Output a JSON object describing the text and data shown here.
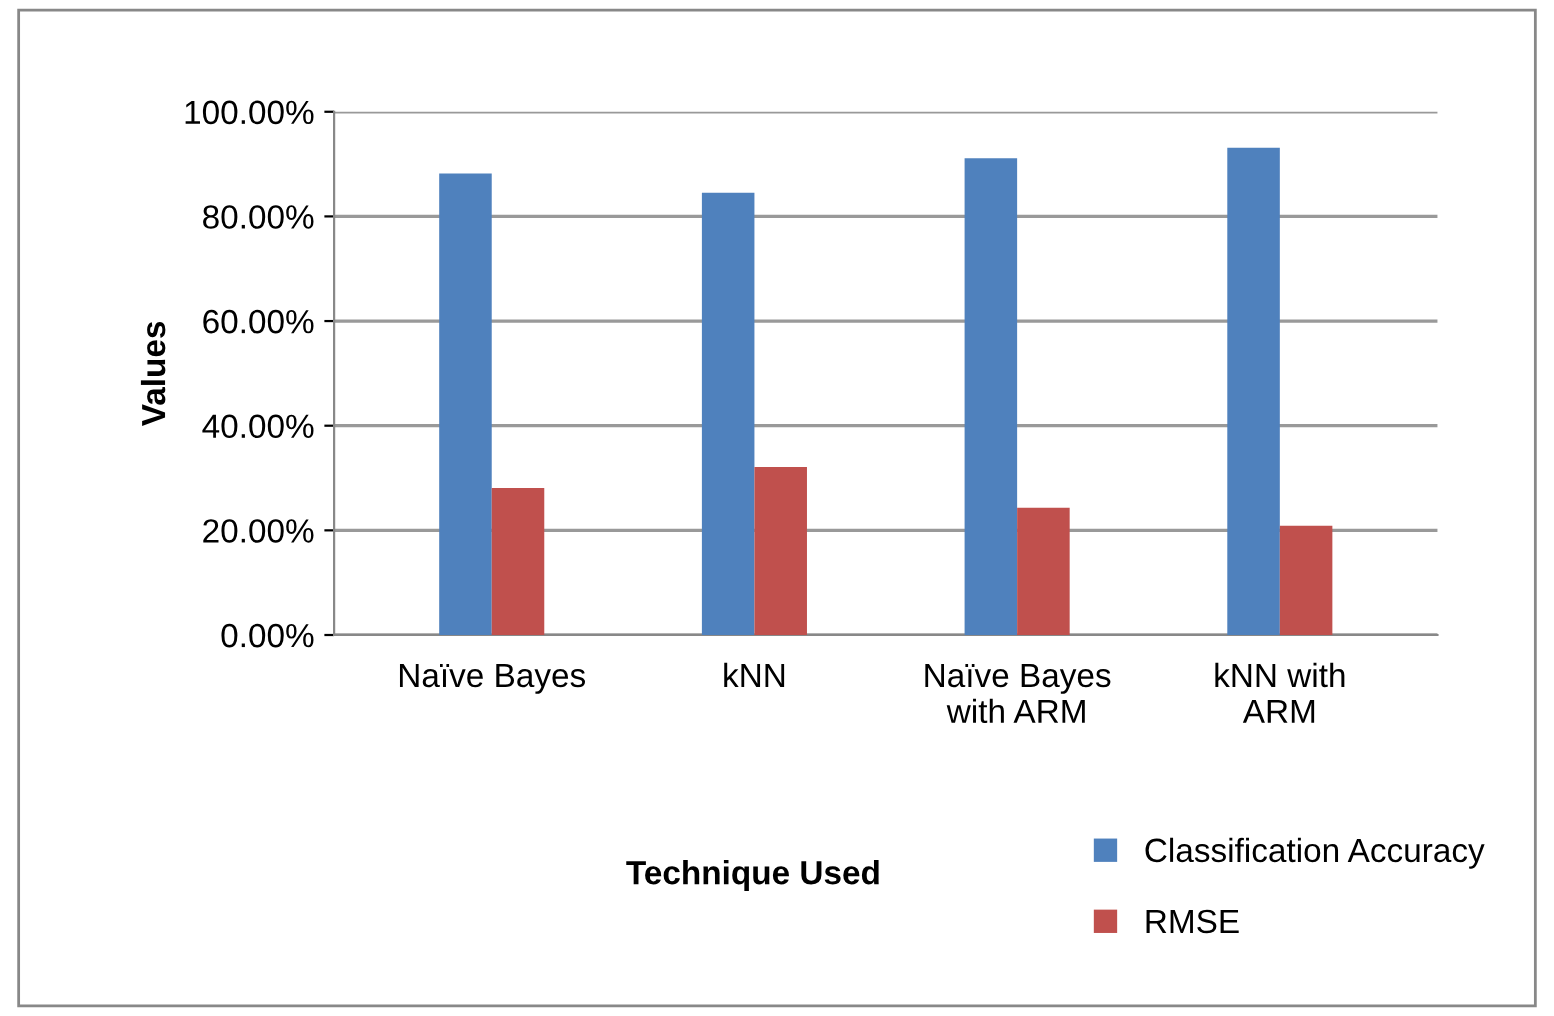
{
  "chart_data": {
    "type": "bar",
    "xlabel": "Technique Used",
    "ylabel": "Values",
    "categories": [
      "Naïve Bayes",
      "kNN",
      "Naïve Bayes\nwith ARM",
      "kNN with\nARM"
    ],
    "series": [
      {
        "name": "Classification Accuracy",
        "color": "#4f81bd",
        "values": [
          0.882,
          0.845,
          0.911,
          0.931
        ]
      },
      {
        "name": "RMSE",
        "color": "#c0504d",
        "values": [
          0.281,
          0.321,
          0.243,
          0.209
        ]
      }
    ],
    "ylim": [
      0,
      1
    ],
    "yticks": [
      {
        "value": 0,
        "label": "0.00%"
      },
      {
        "value": 0.2,
        "label": "20.00%"
      },
      {
        "value": 0.4,
        "label": "40.00%"
      },
      {
        "value": 0.6,
        "label": "60.00%"
      },
      {
        "value": 0.8,
        "label": "80.00%"
      },
      {
        "value": 1,
        "label": "100.00%"
      }
    ],
    "grid": "y",
    "legend": "bottom right"
  }
}
